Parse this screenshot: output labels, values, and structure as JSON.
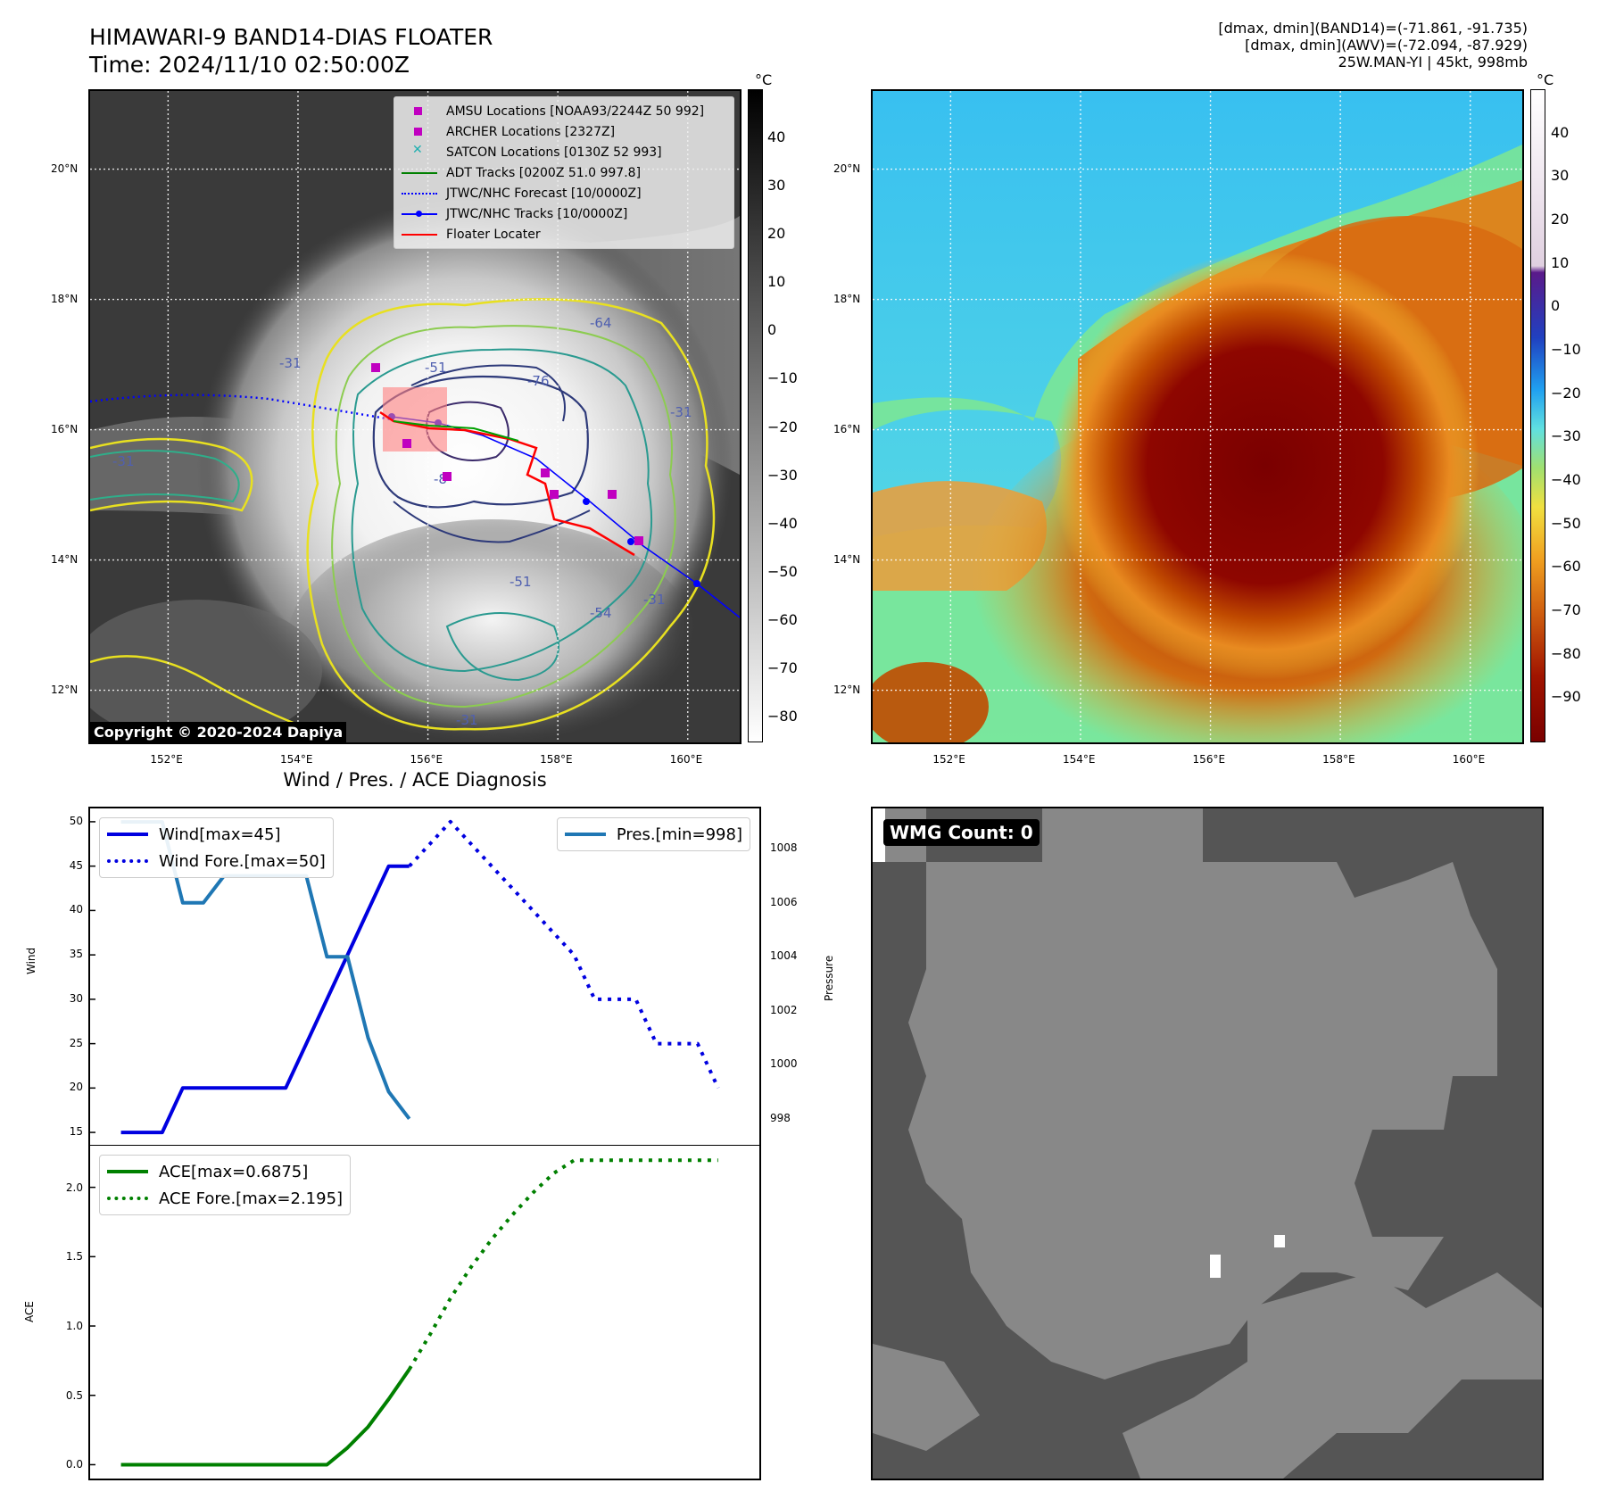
{
  "header": {
    "title_line1": "HIMAWARI-9 BAND14-DIAS FLOATER",
    "title_line2": "Time: 2024/11/10 02:50:00Z",
    "info_line1": "[dmax, dmin](BAND14)=(-71.861, -91.735)",
    "info_line2": "[dmax, dmin](AWV)=(-72.094, -87.929)",
    "info_line3": "25W.MAN-YI | 45kt, 998mb"
  },
  "map_axes": {
    "lat_labels": [
      "20°N",
      "18°N",
      "16°N",
      "14°N",
      "12°N"
    ],
    "lon_labels": [
      "152°E",
      "154°E",
      "156°E",
      "158°E",
      "160°E"
    ],
    "lat_values": [
      20,
      18,
      16,
      14,
      12
    ],
    "lon_values": [
      152,
      154,
      156,
      158,
      160
    ],
    "lat_range": [
      11.2,
      21.2
    ],
    "lon_range": [
      150.8,
      160.8
    ]
  },
  "cbar_left": {
    "unit": "°C",
    "ticks": [
      "40",
      "30",
      "20",
      "10",
      "0",
      "−10",
      "−20",
      "−30",
      "−40",
      "−50",
      "−60",
      "−70",
      "−80"
    ],
    "range": [
      -85,
      50
    ]
  },
  "cbar_right": {
    "unit": "°C",
    "ticks": [
      "40",
      "30",
      "20",
      "10",
      "0",
      "−10",
      "−20",
      "−30",
      "−40",
      "−50",
      "−60",
      "−70",
      "−80",
      "−90"
    ],
    "range": [
      -100,
      50
    ]
  },
  "map_legend": {
    "items": [
      {
        "label": "AMSU Locations [NOAA93/2244Z 50 992]",
        "color": "#c000c0",
        "kind": "square"
      },
      {
        "label": "ARCHER Locations [2327Z]",
        "color": "#c000c0",
        "kind": "square"
      },
      {
        "label": "SATCON Locations [0130Z 52 993]",
        "color": "#20b0b0",
        "kind": "x"
      },
      {
        "label": "ADT Tracks [0200Z 51.0 997.8]",
        "color": "#008000",
        "kind": "line"
      },
      {
        "label": "JTWC/NHC Forecast [10/0000Z]",
        "color": "#0000ff",
        "kind": "dotted"
      },
      {
        "label": "JTWC/NHC Tracks [10/0000Z]",
        "color": "#0000ff",
        "kind": "linedot"
      },
      {
        "label": "Floater Locater",
        "color": "#ff0000",
        "kind": "line"
      }
    ]
  },
  "contour_labels": [
    "-31",
    "-51",
    "-64",
    "-76",
    "-8",
    "-31",
    "-51",
    "-31",
    "-31",
    "-31",
    "-54"
  ],
  "copyright": "Copyright © 2020-2024 Dapiya",
  "wmg_label": "WMG Count: 0",
  "chart_data": [
    {
      "type": "line",
      "title": "Wind / Pres. / ACE Diagnosis",
      "ylabel": "Wind",
      "ylabel_right": "Pressure",
      "ylim": [
        13.5,
        51.5
      ],
      "ylim_right": [
        997,
        1009.5
      ],
      "yticks": [
        15,
        20,
        25,
        30,
        35,
        40,
        45,
        50
      ],
      "yticks_right": [
        998,
        1000,
        1002,
        1004,
        1006,
        1008
      ],
      "legend": [
        "Wind[max=45]",
        "Wind Fore.[max=50]",
        "Pres.[min=998]"
      ],
      "series": [
        {
          "name": "Wind[max=45]",
          "color": "#0000e0",
          "style": "solid",
          "x": [
            0,
            2,
            3,
            4,
            5,
            6,
            7,
            8,
            9,
            10,
            11,
            12,
            13,
            14
          ],
          "values": [
            15,
            15,
            20,
            20,
            20,
            20,
            20,
            20,
            25,
            30,
            35,
            40,
            45,
            45
          ]
        },
        {
          "name": "Wind Fore.[max=50]",
          "color": "#0000e0",
          "style": "dotted",
          "x": [
            14,
            15,
            16,
            17,
            18,
            19,
            20,
            21,
            22,
            23,
            24,
            25,
            26,
            27,
            28,
            29
          ],
          "values": [
            45,
            47.5,
            50,
            47.5,
            45,
            42.5,
            40,
            37.5,
            35,
            30,
            30,
            30,
            25,
            25,
            25,
            20
          ]
        },
        {
          "name": "Pres.[min=998]",
          "color": "#1f77b4",
          "style": "solid",
          "axis": "right",
          "x": [
            0,
            2,
            3,
            4,
            5,
            6,
            7,
            8,
            9,
            10,
            11,
            12,
            13,
            14
          ],
          "values": [
            1009,
            1009,
            1006,
            1006,
            1007,
            1007,
            1007,
            1007,
            1007,
            1004,
            1004,
            1001,
            999,
            998
          ]
        }
      ]
    },
    {
      "type": "line",
      "ylabel": "ACE",
      "ylim": [
        -0.1,
        2.3
      ],
      "yticks": [
        0.0,
        0.5,
        1.0,
        1.5,
        2.0
      ],
      "ytick_labels": [
        "0.0",
        "0.5",
        "1.0",
        "1.5",
        "2.0"
      ],
      "legend": [
        "ACE[max=0.6875]",
        "ACE Fore.[max=2.195]"
      ],
      "series": [
        {
          "name": "ACE[max=0.6875]",
          "color": "#008000",
          "style": "solid",
          "x": [
            0,
            2,
            4,
            6,
            8,
            10,
            11,
            12,
            13,
            14
          ],
          "values": [
            0,
            0,
            0,
            0,
            0,
            0,
            0.1225,
            0.2725,
            0.4725,
            0.6875
          ]
        },
        {
          "name": "ACE Fore.[max=2.195]",
          "color": "#008000",
          "style": "dotted",
          "x": [
            14,
            15,
            16,
            17,
            18,
            19,
            20,
            21,
            22,
            23,
            24,
            25,
            26,
            27,
            28,
            29
          ],
          "values": [
            0.6875,
            0.9375,
            1.2,
            1.425,
            1.625,
            1.8,
            1.96,
            2.1,
            2.195,
            2.195,
            2.195,
            2.195,
            2.195,
            2.195,
            2.195,
            2.195
          ]
        }
      ]
    }
  ]
}
